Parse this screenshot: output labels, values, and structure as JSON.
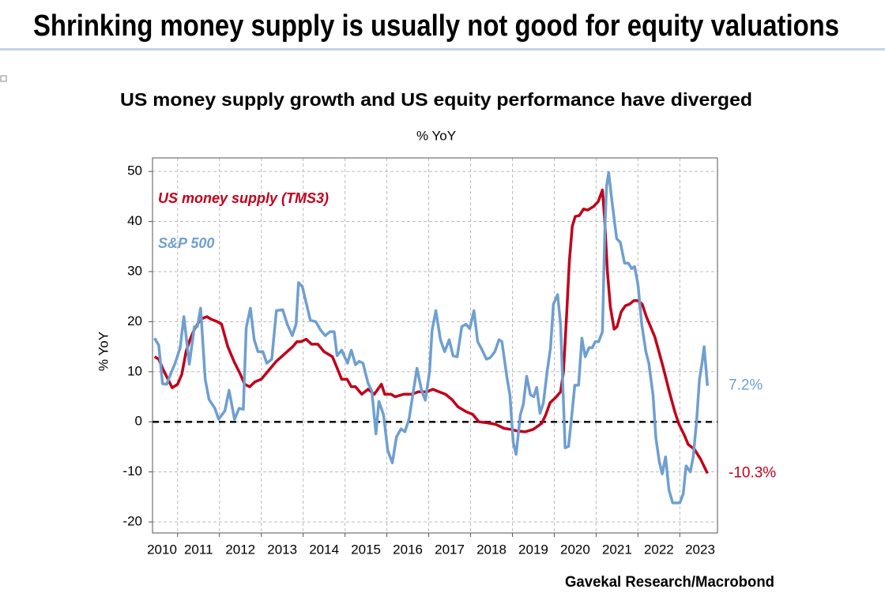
{
  "chart_data": {
    "type": "line",
    "title": "Shrinking money supply is usually not good for equity valuations",
    "subtitle": "US money supply growth and US equity performance have diverged",
    "unit_label": "% YoY",
    "y_label": "% YoY",
    "source": "Gavekal Research/Macrobond",
    "xlim": [
      2010.4,
      2023.9
    ],
    "ylim": [
      -22.2,
      52.7
    ],
    "xticks": [
      2010,
      2011,
      2012,
      2013,
      2014,
      2015,
      2016,
      2017,
      2018,
      2019,
      2020,
      2021,
      2022,
      2023
    ],
    "yticks": [
      -20,
      -10,
      0,
      10,
      20,
      30,
      40,
      50
    ],
    "grid": true,
    "zero_line": true,
    "series": [
      {
        "name": "US money supply (TMS3)",
        "color": "#c0001a",
        "end_label": "-10.3%",
        "x": [
          2010.45,
          2010.55,
          2010.65,
          2010.77,
          2010.87,
          2011.0,
          2011.1,
          2011.2,
          2011.3,
          2011.4,
          2011.55,
          2011.7,
          2011.8,
          2011.95,
          2012.05,
          2012.2,
          2012.35,
          2012.5,
          2012.6,
          2012.72,
          2012.85,
          2013.0,
          2013.15,
          2013.35,
          2013.55,
          2013.75,
          2013.85,
          2013.95,
          2014.07,
          2014.2,
          2014.35,
          2014.5,
          2014.7,
          2014.8,
          2014.92,
          2015.05,
          2015.15,
          2015.25,
          2015.4,
          2015.55,
          2015.7,
          2015.87,
          2015.95,
          2016.1,
          2016.2,
          2016.4,
          2016.6,
          2016.75,
          2016.95,
          2017.1,
          2017.25,
          2017.4,
          2017.55,
          2017.7,
          2017.9,
          2018.05,
          2018.2,
          2018.4,
          2018.6,
          2018.8,
          2018.95,
          2019.1,
          2019.3,
          2019.5,
          2019.7,
          2019.8,
          2019.9,
          2020.05,
          2020.15,
          2020.22,
          2020.3,
          2020.36,
          2020.43,
          2020.5,
          2020.6,
          2020.7,
          2020.8,
          2020.94,
          2021.05,
          2021.15,
          2021.2,
          2021.27,
          2021.34,
          2021.43,
          2021.5,
          2021.6,
          2021.7,
          2021.8,
          2021.9,
          2022.0,
          2022.1,
          2022.2,
          2022.3,
          2022.4,
          2022.5,
          2022.6,
          2022.75,
          2022.88,
          2022.98,
          2023.1,
          2023.2,
          2023.35,
          2023.5,
          2023.66
        ],
        "values": [
          13,
          12.5,
          10.5,
          8.5,
          6.8,
          7.5,
          9.5,
          14,
          16.5,
          18.5,
          20.5,
          21,
          20.5,
          20,
          19.5,
          15,
          12,
          9.5,
          7.5,
          7,
          8,
          8.5,
          10,
          12,
          13.5,
          15,
          16,
          16,
          16.5,
          15.5,
          15.5,
          14,
          13,
          11,
          8.5,
          8.5,
          7,
          7,
          5.5,
          6.5,
          5.5,
          7.5,
          5.5,
          5.5,
          5,
          5.5,
          5.5,
          6,
          6,
          6.5,
          6,
          5.5,
          4.5,
          3,
          2,
          1.5,
          0,
          -0.2,
          -0.5,
          -1.3,
          -1.5,
          -1.8,
          -2,
          -1.5,
          -0.3,
          1.5,
          3.8,
          5,
          6,
          10,
          22,
          32,
          39,
          41,
          41.2,
          42.5,
          42.3,
          43,
          44,
          46.3,
          41,
          30,
          23,
          18.5,
          19,
          22,
          23.2,
          23.5,
          24.2,
          24.2,
          23.5,
          21,
          19,
          17,
          14,
          11,
          6,
          2,
          -0.5,
          -2.5,
          -4.5,
          -5.5,
          -7.5,
          -10.3
        ]
      },
      {
        "name": "S&P 500",
        "color": "#6f9fd0",
        "end_label": "7.2%",
        "x": [
          2010.45,
          2010.55,
          2010.64,
          2010.74,
          2010.83,
          2010.94,
          2011.06,
          2011.15,
          2011.28,
          2011.4,
          2011.47,
          2011.55,
          2011.66,
          2011.75,
          2011.89,
          2011.98,
          2012.13,
          2012.23,
          2012.36,
          2012.47,
          2012.57,
          2012.64,
          2012.74,
          2012.83,
          2012.92,
          2013.04,
          2013.13,
          2013.25,
          2013.36,
          2013.51,
          2013.62,
          2013.74,
          2013.83,
          2013.89,
          2013.98,
          2014.08,
          2014.17,
          2014.3,
          2014.42,
          2014.53,
          2014.64,
          2014.74,
          2014.81,
          2014.92,
          2015.06,
          2015.15,
          2015.25,
          2015.34,
          2015.43,
          2015.55,
          2015.64,
          2015.74,
          2015.81,
          2015.92,
          2016.02,
          2016.13,
          2016.23,
          2016.34,
          2016.43,
          2016.53,
          2016.62,
          2016.72,
          2016.83,
          2016.92,
          2017.02,
          2017.08,
          2017.17,
          2017.28,
          2017.38,
          2017.49,
          2017.58,
          2017.68,
          2017.79,
          2017.89,
          2017.98,
          2018.08,
          2018.17,
          2018.28,
          2018.38,
          2018.47,
          2018.58,
          2018.68,
          2018.75,
          2018.87,
          2018.94,
          2019.02,
          2019.09,
          2019.19,
          2019.26,
          2019.34,
          2019.43,
          2019.51,
          2019.58,
          2019.66,
          2019.74,
          2019.83,
          2019.91,
          2019.98,
          2020.08,
          2020.15,
          2020.26,
          2020.34,
          2020.42,
          2020.49,
          2020.58,
          2020.66,
          2020.74,
          2020.83,
          2020.91,
          2020.98,
          2021.06,
          2021.15,
          2021.21,
          2021.25,
          2021.3,
          2021.38,
          2021.49,
          2021.58,
          2021.68,
          2021.77,
          2021.85,
          2021.92,
          2022.0,
          2022.09,
          2022.19,
          2022.26,
          2022.36,
          2022.43,
          2022.51,
          2022.58,
          2022.66,
          2022.74,
          2022.83,
          2022.91,
          2023.0,
          2023.08,
          2023.15,
          2023.25,
          2023.32,
          2023.4,
          2023.47,
          2023.53,
          2023.58,
          2023.66
        ],
        "values": [
          16.7,
          15.3,
          7.6,
          7.5,
          9.5,
          11.7,
          14.8,
          21,
          11.5,
          19,
          19,
          22.7,
          8.5,
          4.5,
          2.7,
          0.5,
          2.2,
          6.3,
          0.5,
          2.7,
          2.5,
          18.8,
          22.7,
          16.4,
          14,
          14,
          11.7,
          12.5,
          22.2,
          22.4,
          19.5,
          17.2,
          19.5,
          27.8,
          27,
          23.5,
          20.3,
          20,
          18.3,
          17.2,
          18,
          18,
          13.2,
          14.3,
          11.7,
          14.3,
          11.4,
          12.1,
          11.7,
          7.7,
          6.2,
          -2.4,
          4.1,
          1.4,
          -5.7,
          -8.2,
          -3,
          -1.4,
          -2,
          0.6,
          5.4,
          10.7,
          6.2,
          4.3,
          10,
          18.3,
          22.2,
          16.4,
          14,
          16.4,
          13.2,
          13,
          19,
          19.5,
          18.6,
          22.2,
          16,
          14.3,
          12.5,
          12.8,
          14,
          16.4,
          16,
          8.8,
          5.4,
          -4.1,
          -6.5,
          1.4,
          3.5,
          9.1,
          5.4,
          5,
          6.9,
          1.7,
          3.8,
          10,
          14.8,
          23.5,
          25.4,
          19.5,
          -5.2,
          -4.9,
          1.4,
          7.3,
          7.3,
          16.7,
          13,
          14.8,
          14.8,
          16,
          16,
          18,
          38.5,
          47,
          49.8,
          44,
          36.6,
          35.8,
          31.7,
          31.7,
          30.6,
          31,
          27.4,
          19.5,
          14,
          11.7,
          5.4,
          -3.3,
          -8,
          -10.4,
          -7,
          -13.6,
          -16.2,
          -16.2,
          -16.2,
          -14.4,
          -8.8,
          -10,
          -7,
          0,
          8.5,
          11.7,
          15,
          7.2
        ]
      }
    ]
  }
}
